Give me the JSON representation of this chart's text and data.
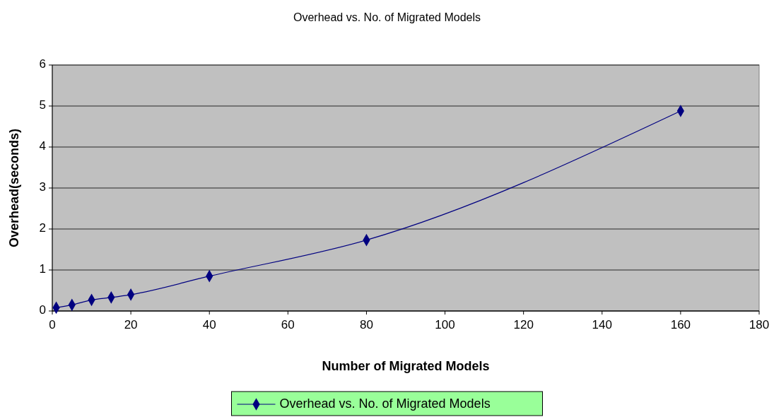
{
  "chart_data": {
    "type": "line",
    "title": "Overhead vs. No. of Migrated Models",
    "xlabel": "Number of Migrated Models",
    "ylabel": "Overhead(seconds)",
    "x": [
      1,
      5,
      10,
      15,
      20,
      40,
      80,
      160
    ],
    "series": [
      {
        "name": "Overhead vs. No. of Migrated Models",
        "color": "#000080",
        "values": [
          0.08,
          0.15,
          0.27,
          0.33,
          0.4,
          0.85,
          1.73,
          4.88
        ]
      }
    ],
    "xlim": [
      0,
      180
    ],
    "xticks": [
      0,
      20,
      40,
      60,
      80,
      100,
      120,
      140,
      160,
      180
    ],
    "ylim": [
      0,
      6
    ],
    "yticks": [
      0,
      1,
      2,
      3,
      4,
      5,
      6
    ],
    "grid": "y",
    "legend": "bottom",
    "marker": "diamond",
    "line_style": "solid"
  }
}
